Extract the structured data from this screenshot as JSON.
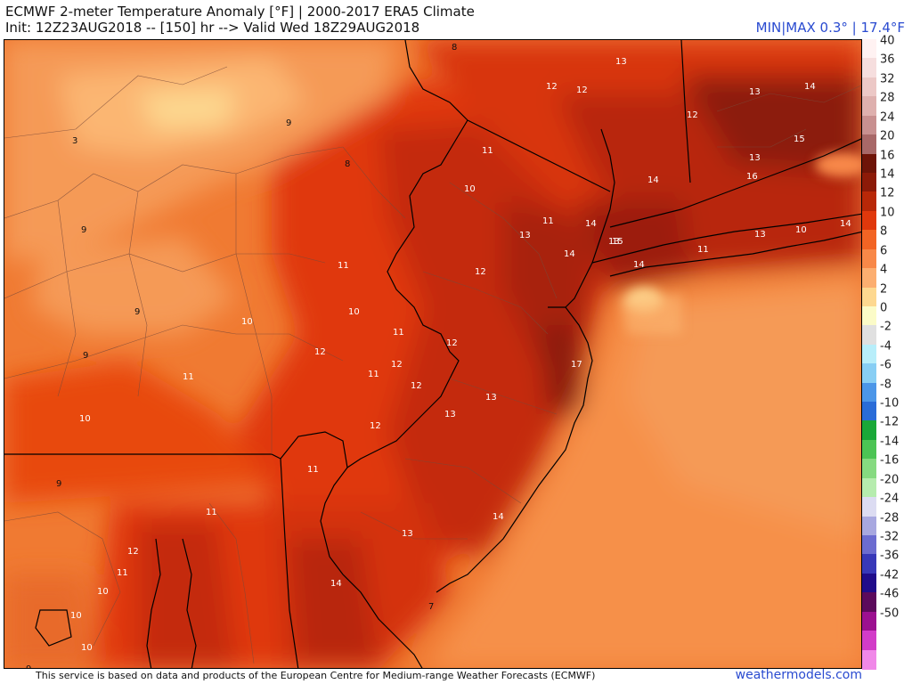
{
  "header": {
    "title": "ECMWF 2-meter Temperature Anomaly [°F] | 2000-2017 ERA5 Climate",
    "init_line": "Init: 12Z23AUG2018 -- [150] hr --> Valid Wed 18Z29AUG2018",
    "minmax": "MIN|MAX 0.3° | 17.4°F"
  },
  "footer": {
    "attribution": "This service is based on data and products of the European Centre for Medium-range Weather Forecasts (ECMWF)",
    "brand": "weathermodels.com"
  },
  "legend": {
    "levels": [
      {
        "label": "40",
        "color": "#fff2f2"
      },
      {
        "label": "36",
        "color": "#f6dede"
      },
      {
        "label": "32",
        "color": "#ecc8c6"
      },
      {
        "label": "28",
        "color": "#deb0ae"
      },
      {
        "label": "24",
        "color": "#c89090"
      },
      {
        "label": "20",
        "color": "#a86868"
      },
      {
        "label": "16",
        "color": "#6e1408"
      },
      {
        "label": "14",
        "color": "#8c1a08"
      },
      {
        "label": "12",
        "color": "#b82808"
      },
      {
        "label": "10",
        "color": "#e0380c"
      },
      {
        "label": "8",
        "color": "#f26424"
      },
      {
        "label": "6",
        "color": "#f88848"
      },
      {
        "label": "4",
        "color": "#fcae70"
      },
      {
        "label": "2",
        "color": "#fdd890"
      },
      {
        "label": "0",
        "color": "#fbfbc8"
      },
      {
        "label": "-2",
        "color": "#e0e0e0"
      },
      {
        "label": "-4",
        "color": "#b8eefa"
      },
      {
        "label": "-6",
        "color": "#88cef4"
      },
      {
        "label": "-8",
        "color": "#4c96e8"
      },
      {
        "label": "-10",
        "color": "#2a6cd8"
      },
      {
        "label": "-12",
        "color": "#1aa838"
      },
      {
        "label": "-14",
        "color": "#4cc454"
      },
      {
        "label": "-16",
        "color": "#86da80"
      },
      {
        "label": "-20",
        "color": "#b6ecae"
      },
      {
        "label": "-24",
        "color": "#dcdcf2"
      },
      {
        "label": "-28",
        "color": "#a8a8e0"
      },
      {
        "label": "-32",
        "color": "#6c6cd0"
      },
      {
        "label": "-36",
        "color": "#3838b8"
      },
      {
        "label": "-42",
        "color": "#200c8a"
      },
      {
        "label": "-46",
        "color": "#5c0a5c"
      },
      {
        "label": "-50",
        "color": "#9c1090"
      },
      {
        "label": "",
        "color": "#d23cc8"
      },
      {
        "label": "",
        "color": "#f088e8"
      }
    ]
  },
  "map_labels": [
    "8",
    "13",
    "12",
    "12",
    "13",
    "14",
    "12",
    "13",
    "15",
    "14",
    "16",
    "3",
    "9",
    "11",
    "8",
    "10",
    "11",
    "13",
    "14",
    "13",
    "14",
    "15",
    "14",
    "13",
    "10",
    "14",
    "9",
    "12",
    "11",
    "12",
    "9",
    "10",
    "10",
    "11",
    "11",
    "12",
    "11",
    "10",
    "9",
    "11",
    "12",
    "17",
    "12",
    "13",
    "11",
    "13",
    "12",
    "9",
    "14",
    "11",
    "13",
    "12",
    "11",
    "10",
    "10",
    "14",
    "7",
    "10",
    "9"
  ]
}
